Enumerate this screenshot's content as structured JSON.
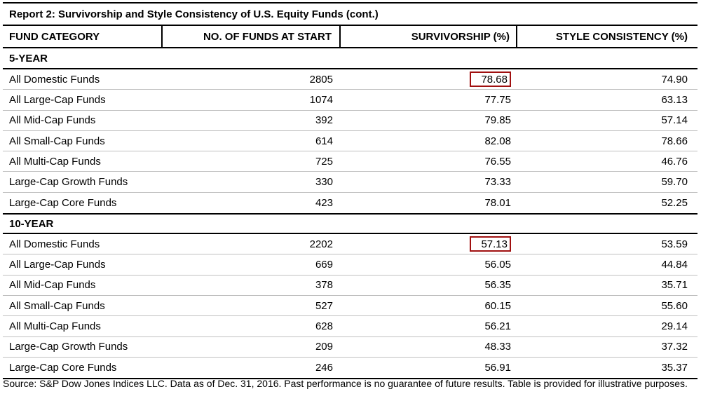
{
  "title": "Report 2: Survivorship and Style Consistency of U.S. Equity Funds (cont.)",
  "headers": [
    "FUND CATEGORY",
    "NO. OF FUNDS AT START",
    "SURVIVORSHIP (%)",
    "STYLE CONSISTENCY (%)"
  ],
  "sections": [
    {
      "label": "5-YEAR",
      "rows": [
        {
          "category": "All Domestic Funds",
          "funds": "2805",
          "survivorship": "78.68",
          "style": "74.90",
          "highlight": true
        },
        {
          "category": "All Large-Cap Funds",
          "funds": "1074",
          "survivorship": "77.75",
          "style": "63.13"
        },
        {
          "category": "All Mid-Cap Funds",
          "funds": "392",
          "survivorship": "79.85",
          "style": "57.14"
        },
        {
          "category": "All Small-Cap Funds",
          "funds": "614",
          "survivorship": "82.08",
          "style": "78.66"
        },
        {
          "category": "All Multi-Cap Funds",
          "funds": "725",
          "survivorship": "76.55",
          "style": "46.76"
        },
        {
          "category": "Large-Cap Growth Funds",
          "funds": "330",
          "survivorship": "73.33",
          "style": "59.70"
        },
        {
          "category": "Large-Cap Core Funds",
          "funds": "423",
          "survivorship": "78.01",
          "style": "52.25"
        }
      ]
    },
    {
      "label": "10-YEAR",
      "rows": [
        {
          "category": "All Domestic Funds",
          "funds": "2202",
          "survivorship": "57.13",
          "style": "53.59",
          "highlight": true
        },
        {
          "category": "All Large-Cap Funds",
          "funds": "669",
          "survivorship": "56.05",
          "style": "44.84"
        },
        {
          "category": "All Mid-Cap Funds",
          "funds": "378",
          "survivorship": "56.35",
          "style": "35.71"
        },
        {
          "category": "All Small-Cap Funds",
          "funds": "527",
          "survivorship": "60.15",
          "style": "55.60"
        },
        {
          "category": "All Multi-Cap Funds",
          "funds": "628",
          "survivorship": "56.21",
          "style": "29.14"
        },
        {
          "category": "Large-Cap Growth Funds",
          "funds": "209",
          "survivorship": "48.33",
          "style": "37.32"
        },
        {
          "category": "Large-Cap Core Funds",
          "funds": "246",
          "survivorship": "56.91",
          "style": "35.37"
        }
      ]
    }
  ],
  "footer": "Source: S&P Dow Jones Indices LLC.  Data as of Dec. 31, 2016.  Past performance is no guarantee of future results.  Table is provided for illustrative purposes.",
  "colors": {
    "highlight_border": "#a01010",
    "rule": "#000000",
    "row_divider": "#bfbfbf"
  }
}
